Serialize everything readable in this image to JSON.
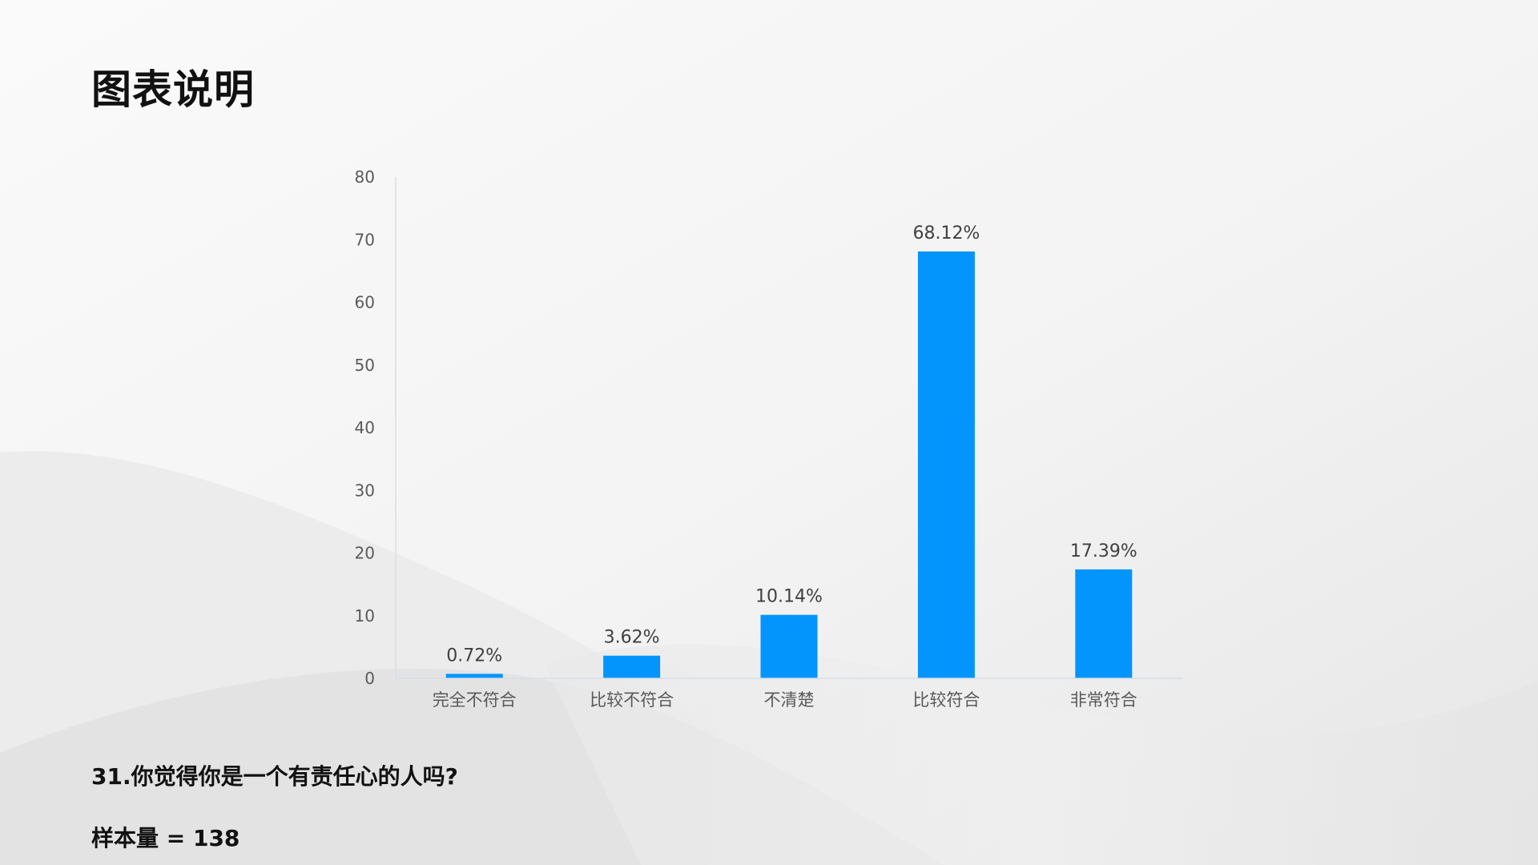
{
  "page": {
    "title": "图表说明",
    "question": "31.你觉得你是一个有责任心的人吗?",
    "sample_label": "样本量 = ",
    "sample_size": "138"
  },
  "colors": {
    "bar": "#0395FC",
    "axis": "#D6DEE8",
    "background": "#F4F4F4"
  },
  "chart_data": {
    "type": "bar",
    "categories": [
      "完全不符合",
      "比较不符合",
      "不清楚",
      "比较符合",
      "非常符合"
    ],
    "values": [
      0.72,
      3.62,
      10.14,
      68.12,
      17.39
    ],
    "data_labels": [
      "0.72%",
      "3.62%",
      "10.14%",
      "68.12%",
      "17.39%"
    ],
    "ylim": [
      0,
      80
    ],
    "yticks": [
      0,
      10,
      20,
      30,
      40,
      50,
      60,
      70,
      80
    ],
    "title": "",
    "xlabel": "",
    "ylabel": "",
    "grid": false,
    "legend": "none"
  }
}
